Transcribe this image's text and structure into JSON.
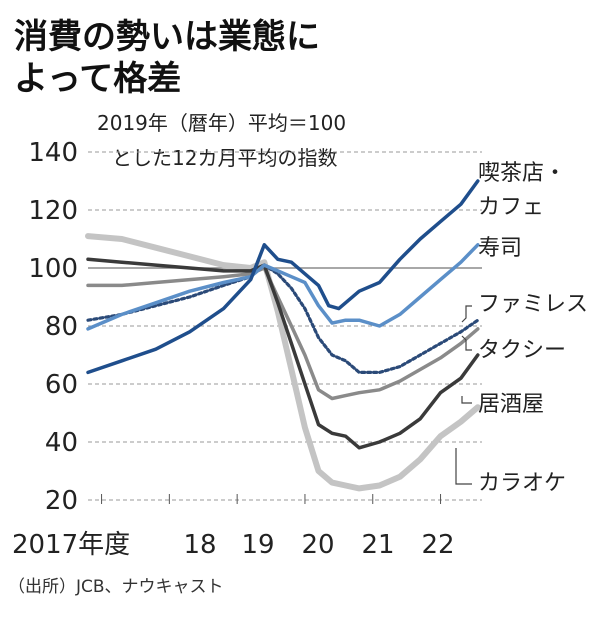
{
  "title_lines": [
    "消費の勢いは業態に",
    "よって格差"
  ],
  "subtitle_lines": [
    "2019年（暦年）平均＝100",
    "とした12カ月平均の指数"
  ],
  "source": "（出所）JCB、ナウキャスト",
  "chart_data": {
    "type": "line",
    "title": "消費の勢いは業態によって格差",
    "subtitle": "2019年（暦年）平均＝100とした12カ月平均の指数",
    "x_tick_labels": [
      "2017年度",
      "18",
      "19",
      "20",
      "21",
      "22"
    ],
    "x_tick_values": [
      2017.2,
      2018.2,
      2019.2,
      2020.2,
      2021.2,
      2022.2
    ],
    "xlim": [
      2017.0,
      2022.9
    ],
    "y_ticks": [
      20,
      40,
      60,
      80,
      100,
      120,
      140
    ],
    "ylim": [
      20,
      140
    ],
    "grid": true,
    "reference_line": 100,
    "series": [
      {
        "name": "喫茶店・カフェ",
        "color": "#1f4e8c",
        "style": "solid",
        "x": [
          2017.0,
          2017.5,
          2018.0,
          2018.5,
          2019.0,
          2019.4,
          2019.6,
          2019.8,
          2020.0,
          2020.2,
          2020.4,
          2020.55,
          2020.7,
          2021.0,
          2021.3,
          2021.6,
          2021.9,
          2022.2,
          2022.5,
          2022.75
        ],
        "y": [
          64,
          68,
          72,
          78,
          86,
          96,
          108,
          103,
          102,
          98,
          94,
          87,
          86,
          92,
          95,
          103,
          110,
          116,
          122,
          130
        ]
      },
      {
        "name": "寿司",
        "color": "#5b8fc8",
        "style": "solid",
        "x": [
          2017.0,
          2017.5,
          2018.0,
          2018.5,
          2019.0,
          2019.4,
          2019.6,
          2019.8,
          2020.0,
          2020.2,
          2020.4,
          2020.6,
          2020.8,
          2021.0,
          2021.3,
          2021.6,
          2021.9,
          2022.2,
          2022.5,
          2022.75
        ],
        "y": [
          79,
          84,
          88,
          92,
          95,
          97,
          101,
          99,
          97,
          95,
          87,
          81,
          82,
          82,
          80,
          84,
          90,
          96,
          102,
          108
        ]
      },
      {
        "name": "ファミレス",
        "color": "#2b4a78",
        "style": "dashed",
        "x": [
          2017.0,
          2017.5,
          2018.0,
          2018.5,
          2019.0,
          2019.4,
          2019.6,
          2019.8,
          2020.0,
          2020.2,
          2020.4,
          2020.6,
          2020.8,
          2021.0,
          2021.3,
          2021.6,
          2021.9,
          2022.2,
          2022.5,
          2022.75
        ],
        "y": [
          82,
          84,
          87,
          90,
          94,
          97,
          101,
          98,
          93,
          86,
          76,
          70,
          68,
          64,
          64,
          66,
          70,
          74,
          78,
          82
        ]
      },
      {
        "name": "タクシー",
        "color": "#8a8a8a",
        "style": "solid",
        "x": [
          2017.0,
          2017.5,
          2018.0,
          2018.5,
          2019.0,
          2019.4,
          2019.6,
          2019.8,
          2020.0,
          2020.2,
          2020.4,
          2020.6,
          2020.8,
          2021.0,
          2021.3,
          2021.6,
          2021.9,
          2022.2,
          2022.5,
          2022.75
        ],
        "y": [
          94,
          94,
          95,
          96,
          97,
          98,
          100,
          90,
          80,
          70,
          58,
          55,
          56,
          57,
          58,
          61,
          65,
          69,
          74,
          79
        ]
      },
      {
        "name": "居酒屋",
        "color": "#3a3a3a",
        "style": "solid",
        "x": [
          2017.0,
          2017.5,
          2018.0,
          2018.5,
          2019.0,
          2019.4,
          2019.6,
          2019.8,
          2020.0,
          2020.2,
          2020.4,
          2020.6,
          2020.8,
          2021.0,
          2021.3,
          2021.6,
          2021.9,
          2022.2,
          2022.5,
          2022.75
        ],
        "y": [
          103,
          102,
          101,
          100,
          99,
          99,
          101,
          88,
          74,
          60,
          46,
          43,
          42,
          38,
          40,
          43,
          48,
          57,
          62,
          70
        ]
      },
      {
        "name": "カラオケ",
        "color": "#c4c4c4",
        "style": "solid",
        "x": [
          2017.0,
          2017.5,
          2018.0,
          2018.5,
          2019.0,
          2019.4,
          2019.6,
          2019.8,
          2020.0,
          2020.2,
          2020.4,
          2020.6,
          2020.8,
          2021.0,
          2021.3,
          2021.6,
          2021.9,
          2022.2,
          2022.5,
          2022.75
        ],
        "y": [
          111,
          110,
          107,
          104,
          101,
          100,
          102,
          85,
          65,
          45,
          30,
          26,
          25,
          24,
          25,
          28,
          34,
          42,
          47,
          52
        ]
      }
    ]
  }
}
